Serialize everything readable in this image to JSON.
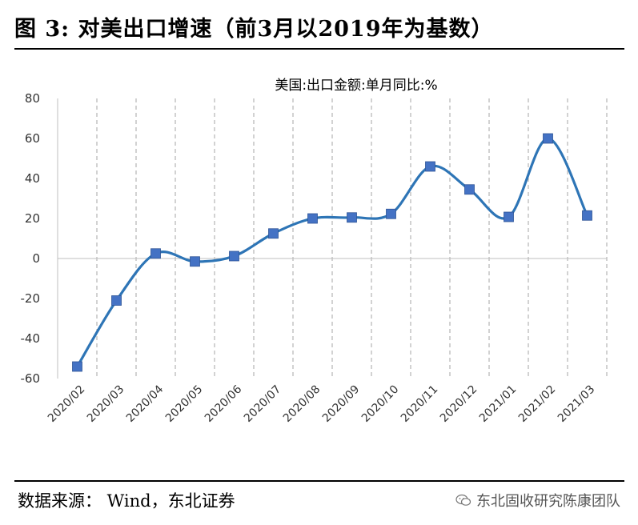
{
  "figure": {
    "title": "图 3: 对美出口增速（前3月以2019年为基数）",
    "source": "数据来源： Wind，东北证券",
    "watermark": "东北固收研究陈康团队",
    "watermark_icon": "wechat-icon"
  },
  "chart_data": {
    "type": "line",
    "title": "美国:出口金额:单月同比:%",
    "xlabel": "",
    "ylabel": "",
    "categories": [
      "2020/02",
      "2020/03",
      "2020/04",
      "2020/05",
      "2020/06",
      "2020/07",
      "2020/08",
      "2020/09",
      "2020/10",
      "2020/11",
      "2020/12",
      "2021/01",
      "2021/02",
      "2021/03"
    ],
    "series": [
      {
        "name": "",
        "values": [
          -54,
          -21,
          2.5,
          -1.5,
          1.2,
          12.5,
          20,
          20.5,
          22.3,
          46,
          34.5,
          20.8,
          60,
          21.5
        ]
      }
    ],
    "yticks": [
      80,
      60,
      40,
      20,
      0,
      -20,
      -40,
      -60
    ],
    "ylim": [
      -60,
      80
    ],
    "grid": "vertical dashed",
    "colors": {
      "line": "#2E75B6",
      "marker": "#4472C4",
      "grid": "#A6A6A6"
    }
  }
}
